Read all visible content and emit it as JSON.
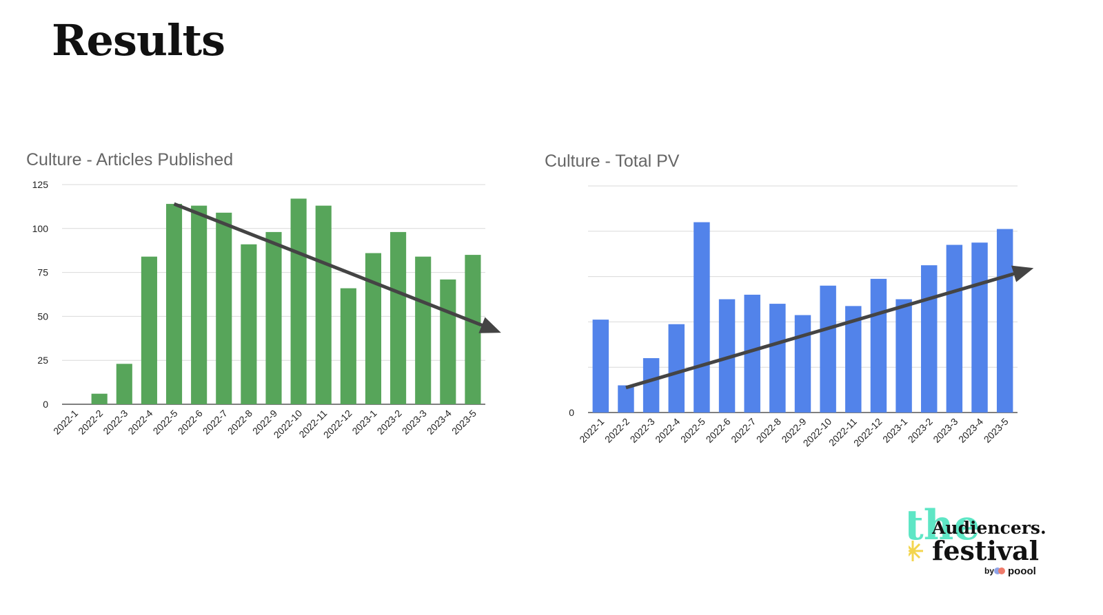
{
  "slide": {
    "title": "Results"
  },
  "chart_data": [
    {
      "type": "bar",
      "title": "Culture - Articles Published",
      "categories": [
        "2022-1",
        "2022-2",
        "2022-3",
        "2022-4",
        "2022-5",
        "2022-6",
        "2022-7",
        "2022-8",
        "2022-9",
        "2022-10",
        "2022-11",
        "2022-12",
        "2023-1",
        "2023-2",
        "2023-3",
        "2023-4",
        "2023-5"
      ],
      "values": [
        0,
        6,
        23,
        84,
        114,
        113,
        109,
        91,
        98,
        117,
        113,
        66,
        86,
        98,
        84,
        71,
        85
      ],
      "ylim": [
        0,
        125
      ],
      "yticks": [
        "0",
        "25",
        "50",
        "75",
        "100",
        "125"
      ],
      "color": "#57a55a",
      "trend": {
        "direction": "down",
        "from_category": "2022-5",
        "from_value": 114,
        "to_category": "2023-5",
        "to_value": 42,
        "color": "#444444"
      },
      "xlabel": "",
      "ylabel": ""
    },
    {
      "type": "bar",
      "title": "Culture - Total PV",
      "categories": [
        "2022-1",
        "2022-2",
        "2022-3",
        "2022-4",
        "2022-5",
        "2022-6",
        "2022-7",
        "2022-8",
        "2022-9",
        "2022-10",
        "2022-11",
        "2022-12",
        "2023-1",
        "2023-2",
        "2023-3",
        "2023-4",
        "2023-5"
      ],
      "values": [
        41,
        12,
        24,
        39,
        84,
        50,
        52,
        48,
        43,
        56,
        47,
        59,
        50,
        65,
        74,
        75,
        81
      ],
      "ylim": [
        0,
        100
      ],
      "yticks": [
        "0"
      ],
      "gridlines": 5,
      "color": "#5283ea",
      "trend": {
        "direction": "up",
        "from_category": "2022-2",
        "from_value": 11,
        "to_category": "2023-5",
        "to_value": 63,
        "color": "#444444"
      },
      "xlabel": "",
      "ylabel": ""
    }
  ],
  "logo": {
    "text_the": "the",
    "text_audiencers": "Audiencers.",
    "text_festival": "festival",
    "text_by": "by",
    "text_poool": "poool",
    "colors": {
      "the": "#5ee6c5",
      "text": "#111111",
      "sparkle_yellow": "#f3d54e",
      "sparkle_blue": "#8ea3e6",
      "sparkle_red": "#ef7b6b"
    }
  }
}
